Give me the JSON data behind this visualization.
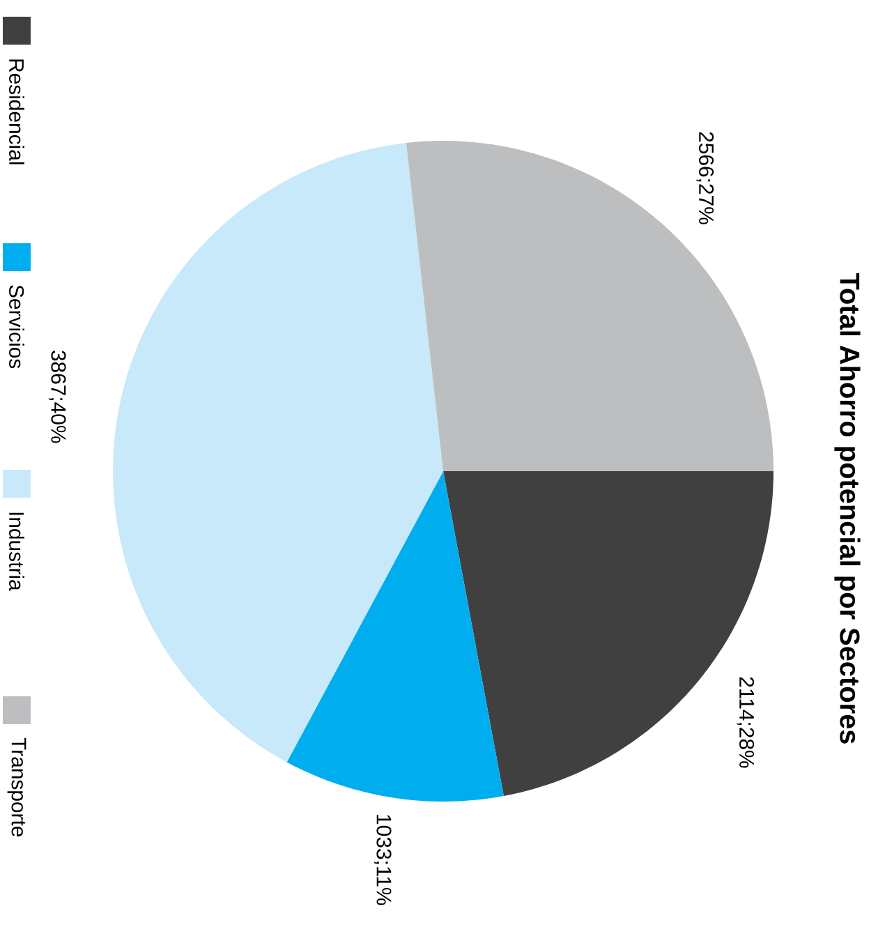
{
  "chart_data": {
    "type": "pie",
    "title": "Total Ahorro potencial por Sectores",
    "categories": [
      "Residencial",
      "Servicios",
      "Industria",
      "Transporte"
    ],
    "values": [
      2114,
      1033,
      3867,
      2566
    ],
    "value_labels": [
      "2114;28%",
      "1033;11%",
      "3867;40%",
      "2566;27%"
    ],
    "colors": [
      "#404040",
      "#00aeef",
      "#c8e9f9",
      "#bcbec0"
    ],
    "legend": "left"
  }
}
